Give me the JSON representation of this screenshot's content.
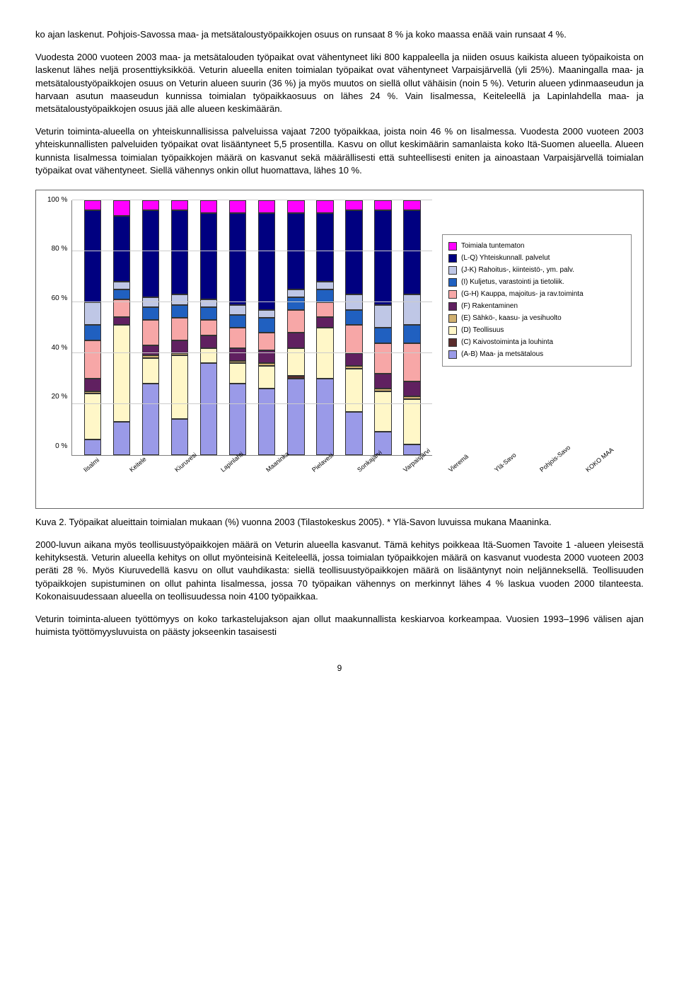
{
  "para1": "ko ajan laskenut. Pohjois-Savossa maa- ja metsätaloustyöpaikkojen osuus on runsaat 8 % ja koko maassa enää vain runsaat 4 %.",
  "para2": "Vuodesta 2000 vuoteen 2003 maa- ja metsätalouden työpaikat ovat vähentyneet liki 800 kappaleella ja niiden osuus kaikista alueen työpaikoista on laskenut lähes neljä prosenttiyksikköä. Veturin alueella eniten toimialan työpaikat ovat vähentyneet Varpaisjärvellä (yli 25%). Maaningalla maa- ja metsätaloustyöpaikkojen osuus on Veturin alueen suurin (36 %) ja myös muutos on siellä ollut vähäisin (noin 5 %). Veturin alueen ydinmaaseudun ja harvaan asutun maaseudun kunnissa toimialan työpaikkaosuus on lähes 24 %. Vain Iisalmessa, Keiteleellä ja Lapinlahdella maa- ja metsätaloustyöpaikkojen osuus jää alle alueen keskimäärän.",
  "para3": "Veturin toiminta-alueella on yhteiskunnallisissa palveluissa vajaat 7200 työpaikkaa, joista noin 46 % on Iisalmessa. Vuodesta 2000 vuoteen 2003 yhteiskunnallisten palveluiden työpaikat ovat lisääntyneet 5,5 prosentilla. Kasvu on ollut keskimäärin samanlaista koko Itä-Suomen alueella. Alueen kunnista Iisalmessa toimialan työpaikkojen määrä on kasvanut sekä määrällisesti että suhteellisesti eniten ja ainoastaan Varpaisjärvellä toimialan työpaikat ovat vähentyneet. Siellä vähennys onkin ollut huomattava, lähes 10 %.",
  "chart": {
    "y_ticks": [
      "100 %",
      "80 %",
      "60 %",
      "40 %",
      "20 %",
      "0 %"
    ],
    "categories": [
      "Iisalmi",
      "Keitele",
      "Kiuruvesi",
      "Lapinlahti",
      "Maaninka",
      "Pielavesi",
      "Sonkajärvi",
      "Varpaisjärvi",
      "Vieremä",
      "Ylä-Savo",
      "Pohjois-Savo",
      "KOKO MAA"
    ],
    "colors": {
      "tuntematon": "#ff00ff",
      "yhteiskunnall": "#000080",
      "rahoitus": "#bfc7e6",
      "kuljetus": "#2060c0",
      "kauppa": "#f7a7a7",
      "rakentaminen": "#602060",
      "sahko": "#d0b070",
      "teollisuus": "#fff7c8",
      "kaivos": "#5b2d2d",
      "maametsa": "#9a9ae8"
    },
    "legend": [
      {
        "key": "tuntematon",
        "label": "Toimiala tuntematon"
      },
      {
        "key": "yhteiskunnall",
        "label": "(L-Q) Yhteiskunnall. palvelut"
      },
      {
        "key": "rahoitus",
        "label": "(J-K) Rahoitus-, kiinteistö-, ym. palv."
      },
      {
        "key": "kuljetus",
        "label": "(I) Kuljetus, varastointi ja tietoliik."
      },
      {
        "key": "kauppa",
        "label": "(G-H) Kauppa, majoitus- ja rav.toiminta"
      },
      {
        "key": "rakentaminen",
        "label": "(F) Rakentaminen"
      },
      {
        "key": "sahko",
        "label": "(E) Sähkö-, kaasu- ja vesihuolto"
      },
      {
        "key": "teollisuus",
        "label": "(D) Teollisuus"
      },
      {
        "key": "kaivos",
        "label": "(C) Kaivostoiminta ja louhinta"
      },
      {
        "key": "maametsa",
        "label": "(A-B) Maa- ja metsätalous"
      }
    ],
    "stack_order": [
      "maametsa",
      "kaivos",
      "teollisuus",
      "sahko",
      "rakentaminen",
      "kauppa",
      "kuljetus",
      "rahoitus",
      "yhteiskunnall",
      "tuntematon"
    ],
    "data": {
      "Iisalmi": {
        "maametsa": 6,
        "kaivos": 0,
        "teollisuus": 18,
        "sahko": 1,
        "rakentaminen": 5,
        "kauppa": 15,
        "kuljetus": 6,
        "rahoitus": 9,
        "yhteiskunnall": 36,
        "tuntematon": 4
      },
      "Keitele": {
        "maametsa": 13,
        "kaivos": 0,
        "teollisuus": 38,
        "sahko": 0,
        "rakentaminen": 3,
        "kauppa": 7,
        "kuljetus": 4,
        "rahoitus": 3,
        "yhteiskunnall": 26,
        "tuntematon": 6
      },
      "Kiuruvesi": {
        "maametsa": 28,
        "kaivos": 0,
        "teollisuus": 10,
        "sahko": 1,
        "rakentaminen": 4,
        "kauppa": 10,
        "kuljetus": 5,
        "rahoitus": 4,
        "yhteiskunnall": 34,
        "tuntematon": 4
      },
      "Lapinlahti": {
        "maametsa": 14,
        "kaivos": 0,
        "teollisuus": 25,
        "sahko": 1,
        "rakentaminen": 5,
        "kauppa": 9,
        "kuljetus": 5,
        "rahoitus": 4,
        "yhteiskunnall": 33,
        "tuntematon": 4
      },
      "Maaninka": {
        "maametsa": 36,
        "kaivos": 0,
        "teollisuus": 6,
        "sahko": 0,
        "rakentaminen": 5,
        "kauppa": 6,
        "kuljetus": 5,
        "rahoitus": 3,
        "yhteiskunnall": 34,
        "tuntematon": 5
      },
      "Pielavesi": {
        "maametsa": 28,
        "kaivos": 0,
        "teollisuus": 8,
        "sahko": 1,
        "rakentaminen": 5,
        "kauppa": 8,
        "kuljetus": 5,
        "rahoitus": 4,
        "yhteiskunnall": 36,
        "tuntematon": 5
      },
      "Sonkajärvi": {
        "maametsa": 26,
        "kaivos": 0,
        "teollisuus": 9,
        "sahko": 1,
        "rakentaminen": 5,
        "kauppa": 7,
        "kuljetus": 6,
        "rahoitus": 3,
        "yhteiskunnall": 38,
        "tuntematon": 5
      },
      "Varpaisjärvi": {
        "maametsa": 30,
        "kaivos": 1,
        "teollisuus": 11,
        "sahko": 0,
        "rakentaminen": 6,
        "kauppa": 9,
        "kuljetus": 5,
        "rahoitus": 3,
        "yhteiskunnall": 30,
        "tuntematon": 5
      },
      "Vieremä": {
        "maametsa": 30,
        "kaivos": 0,
        "teollisuus": 20,
        "sahko": 0,
        "rakentaminen": 4,
        "kauppa": 6,
        "kuljetus": 5,
        "rahoitus": 3,
        "yhteiskunnall": 27,
        "tuntematon": 5
      },
      "Ylä-Savo": {
        "maametsa": 17,
        "kaivos": 0,
        "teollisuus": 17,
        "sahko": 1,
        "rakentaminen": 5,
        "kauppa": 11,
        "kuljetus": 6,
        "rahoitus": 6,
        "yhteiskunnall": 33,
        "tuntematon": 4
      },
      "Pohjois-Savo": {
        "maametsa": 9,
        "kaivos": 0,
        "teollisuus": 16,
        "sahko": 1,
        "rakentaminen": 6,
        "kauppa": 12,
        "kuljetus": 6,
        "rahoitus": 9,
        "yhteiskunnall": 37,
        "tuntematon": 4
      },
      "KOKO MAA": {
        "maametsa": 4,
        "kaivos": 0,
        "teollisuus": 18,
        "sahko": 1,
        "rakentaminen": 6,
        "kauppa": 15,
        "kuljetus": 7,
        "rahoitus": 12,
        "yhteiskunnall": 33,
        "tuntematon": 4
      }
    }
  },
  "caption": "Kuva 2. Työpaikat alueittain toimialan mukaan (%) vuonna 2003 (Tilastokeskus 2005). * Ylä-Savon luvuissa mukana Maaninka.",
  "para4": "2000-luvun aikana myös teollisuustyöpaikkojen määrä on Veturin alueella kasvanut. Tämä kehitys poikkeaa Itä-Suomen Tavoite 1 -alueen yleisestä kehityksestä. Veturin alueella kehitys on ollut myönteisinä Keiteleellä, jossa toimialan työpaikkojen määrä on kasvanut vuodesta 2000 vuoteen 2003 peräti 28 %. Myös Kiuruvedellä kasvu on ollut vauhdikasta: siellä teollisuustyöpaikkojen määrä on lisääntynyt noin neljänneksellä. Teollisuuden työpaikkojen supistuminen on ollut pahinta Iisalmessa, jossa 70 työpaikan vähennys on merkinnyt lähes 4 % laskua vuoden 2000 tilanteesta. Kokonaisuudessaan alueella on teollisuudessa noin 4100 työpaikkaa.",
  "para5": "Veturin toiminta-alueen työttömyys on koko tarkastelujakson ajan ollut maakunnallista keskiarvoa korkeampaa. Vuosien 1993–1996 välisen ajan huimista työttömyysluvuista on päästy jokseenkin tasaisesti",
  "pagenum": "9"
}
